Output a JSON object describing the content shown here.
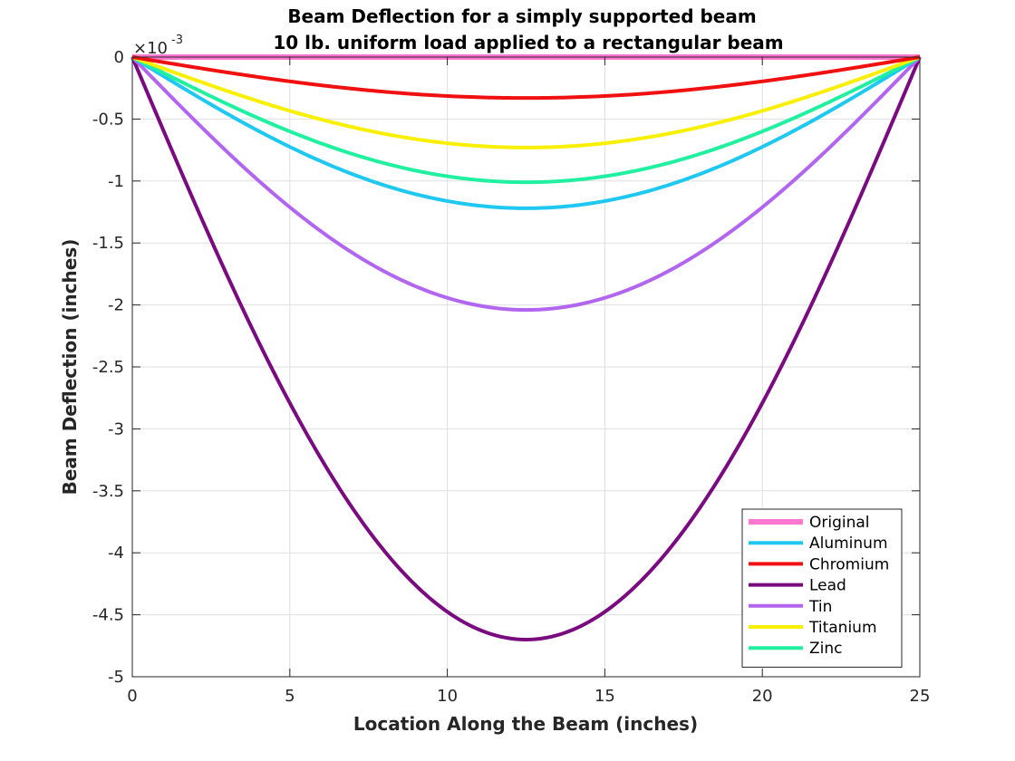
{
  "chart_data": {
    "type": "line",
    "title": "Beam Deflection for a simply supported beam",
    "subtitle": "10 lb. uniform load applied to a rectangular beam",
    "xlabel": "Location Along the Beam (inches)",
    "ylabel": "Beam Deflection (inches)",
    "y_exponent": {
      "base": "×10",
      "power": "-3"
    },
    "xlim": [
      0,
      25
    ],
    "ylim": [
      -5,
      0
    ],
    "xticks": [
      0,
      5,
      10,
      15,
      20,
      25
    ],
    "yticks": [
      0,
      -0.5,
      -1,
      -1.5,
      -2,
      -2.5,
      -3,
      -3.5,
      -4,
      -4.5,
      -5
    ],
    "xtick_labels": [
      "0",
      "5",
      "10",
      "15",
      "20",
      "25"
    ],
    "ytick_labels": [
      "0",
      "-0.5",
      "-1",
      "-1.5",
      "-2",
      "-2.5",
      "-3",
      "-3.5",
      "-4",
      "-4.5",
      "-5"
    ],
    "grid": true,
    "legend_position": "bottom-right",
    "curve_shape": "uniform-load deflection, zero at both supports, minimum at mid-span",
    "series": [
      {
        "name": "Original",
        "color": "#ff77d0",
        "min_value": 0.0,
        "min_at": 12.5
      },
      {
        "name": "Aluminum",
        "color": "#1ec8f0",
        "min_value": -1.22,
        "min_at": 12.5
      },
      {
        "name": "Chromium",
        "color": "#f01010",
        "min_value": -0.33,
        "min_at": 12.5
      },
      {
        "name": "Lead",
        "color": "#7a0a7f",
        "min_value": -4.7,
        "min_at": 12.5
      },
      {
        "name": "Tin",
        "color": "#b266f0",
        "min_value": -2.04,
        "min_at": 12.5
      },
      {
        "name": "Titanium",
        "color": "#f8f000",
        "min_value": -0.73,
        "min_at": 12.5
      },
      {
        "name": "Zinc",
        "color": "#20f0a0",
        "min_value": -1.01,
        "min_at": 12.5
      }
    ],
    "draw_order": [
      "Original",
      "Lead",
      "Tin",
      "Aluminum",
      "Zinc",
      "Titanium",
      "Chromium"
    ]
  }
}
